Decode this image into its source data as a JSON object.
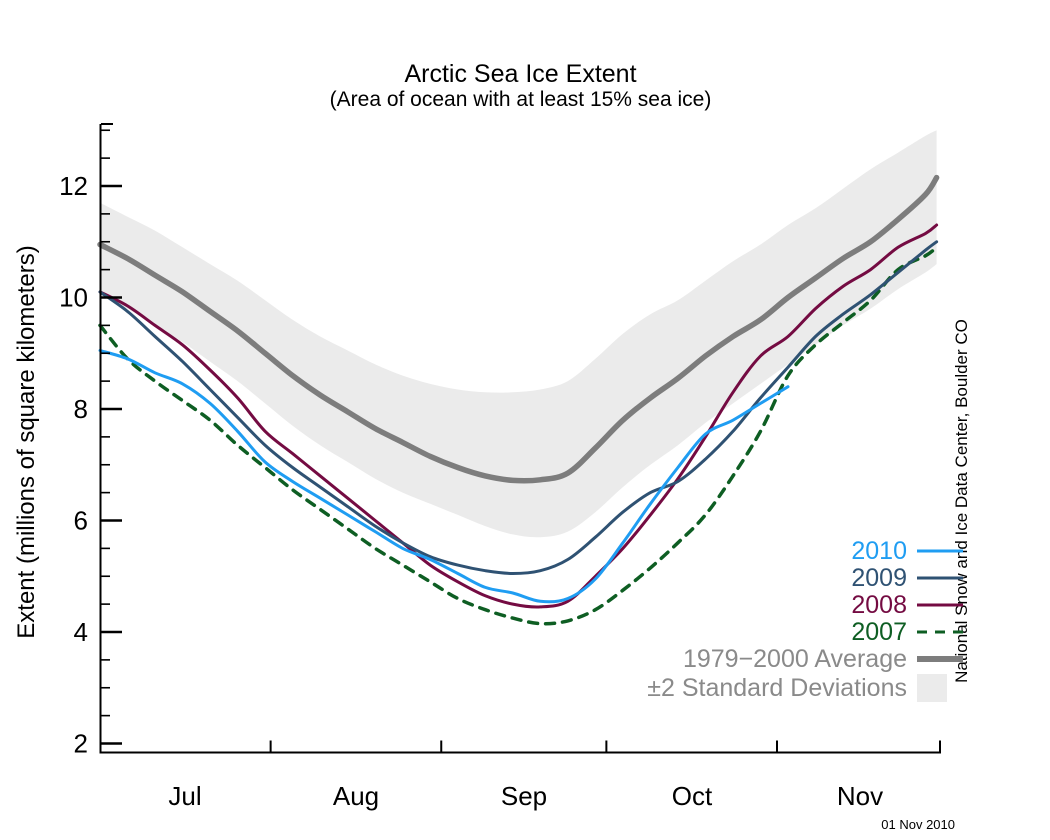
{
  "title": "Arctic Sea Ice Extent",
  "subtitle": "(Area of ocean with at least 15% sea ice)",
  "y_axis": {
    "label": "Extent (millions of square kilometers)",
    "major_ticks": [
      2,
      4,
      6,
      8,
      10,
      12
    ],
    "minor_tick_step": 0.5,
    "range": [
      1.85,
      13.1
    ]
  },
  "x_axis": {
    "month_labels": [
      "Jul",
      "Aug",
      "Sep",
      "Oct",
      "Nov"
    ],
    "range": [
      "Jul 1",
      "Dec 1"
    ],
    "month_start_ticks_day_offsets": [
      31,
      62,
      92,
      123
    ]
  },
  "watermark": "National Snow and Ice Data Center, Boulder CO",
  "date_stamp": "01 Nov 2010",
  "legend": [
    {
      "id": "2010",
      "label": "2010",
      "color": "#1f9df2",
      "style": "solid"
    },
    {
      "id": "2009",
      "label": "2009",
      "color": "#2f5273",
      "style": "solid"
    },
    {
      "id": "2008",
      "label": "2008",
      "color": "#740b42",
      "style": "solid"
    },
    {
      "id": "2007",
      "label": "2007",
      "color": "#0e5e23",
      "style": "dashed"
    },
    {
      "id": "average",
      "label": "1979−2000 Average",
      "color": "#7d7d7d",
      "style": "thick",
      "text_color": "#8a8a8a"
    },
    {
      "id": "stddev",
      "label": "±2 Standard Deviations",
      "color": "#ebebeb",
      "style": "band",
      "text_color": "#8a8a8a"
    }
  ],
  "chart_data": {
    "type": "line",
    "title": "Arctic Sea Ice Extent",
    "subtitle": "(Area of ocean with at least 15% sea ice)",
    "xlabel": "",
    "ylabel": "Extent (millions of square kilometers)",
    "ylim": [
      1.85,
      13.1
    ],
    "grid": false,
    "legend_position": "lower right",
    "units": "millions of square kilometers",
    "dates": [
      "Jul 1",
      "Jul 6",
      "Jul 11",
      "Jul 16",
      "Jul 21",
      "Jul 26",
      "Jul 31",
      "Aug 5",
      "Aug 10",
      "Aug 15",
      "Aug 20",
      "Aug 25",
      "Aug 30",
      "Sep 4",
      "Sep 9",
      "Sep 14",
      "Sep 19",
      "Sep 24",
      "Sep 29",
      "Oct 4",
      "Oct 9",
      "Oct 14",
      "Oct 19",
      "Oct 24",
      "Oct 29",
      "Nov 3",
      "Nov 8",
      "Nov 13",
      "Nov 18",
      "Nov 23",
      "Nov 28",
      "Nov 30"
    ],
    "day_offsets": [
      0,
      5,
      10,
      15,
      20,
      25,
      30,
      35,
      40,
      45,
      50,
      55,
      60,
      65,
      70,
      75,
      80,
      85,
      90,
      95,
      100,
      105,
      110,
      115,
      120,
      125,
      130,
      135,
      140,
      145,
      150,
      152
    ],
    "series": [
      {
        "name": "2010",
        "color": "#1f9df2",
        "dash": null,
        "width": 3,
        "values": [
          9.05,
          8.9,
          8.65,
          8.45,
          8.1,
          7.6,
          7.05,
          6.7,
          6.4,
          6.1,
          5.8,
          5.5,
          5.3,
          5.05,
          4.8,
          4.7,
          4.55,
          4.6,
          4.95,
          5.6,
          6.3,
          6.95,
          7.55,
          7.8,
          8.1,
          8.4,
          null,
          null,
          null,
          null,
          null,
          null
        ],
        "ends": "01 Nov 2010"
      },
      {
        "name": "2009",
        "color": "#2f5273",
        "dash": null,
        "width": 3,
        "values": [
          10.1,
          9.75,
          9.3,
          8.85,
          8.35,
          7.85,
          7.35,
          6.95,
          6.6,
          6.25,
          5.9,
          5.6,
          5.35,
          5.2,
          5.1,
          5.05,
          5.1,
          5.3,
          5.7,
          6.15,
          6.5,
          6.7,
          7.1,
          7.6,
          8.2,
          8.75,
          9.3,
          9.7,
          10.05,
          10.45,
          10.85,
          11.0
        ]
      },
      {
        "name": "2008",
        "color": "#740b42",
        "dash": null,
        "width": 3,
        "values": [
          10.1,
          9.85,
          9.5,
          9.15,
          8.7,
          8.2,
          7.6,
          7.2,
          6.8,
          6.4,
          6.0,
          5.6,
          5.2,
          4.9,
          4.65,
          4.5,
          4.45,
          4.55,
          5.0,
          5.5,
          6.1,
          6.75,
          7.5,
          8.3,
          8.95,
          9.3,
          9.8,
          10.2,
          10.5,
          10.9,
          11.15,
          11.3
        ]
      },
      {
        "name": "2007",
        "color": "#0e5e23",
        "dash": "9 8",
        "width": 3.5,
        "values": [
          9.5,
          8.9,
          8.5,
          8.15,
          7.8,
          7.35,
          6.95,
          6.55,
          6.2,
          5.85,
          5.5,
          5.2,
          4.9,
          4.6,
          4.4,
          4.25,
          4.15,
          4.2,
          4.4,
          4.75,
          5.15,
          5.6,
          6.1,
          6.8,
          7.6,
          8.6,
          9.15,
          9.55,
          9.95,
          10.5,
          10.75,
          10.9
        ]
      },
      {
        "name": "1979-2000 Average",
        "color": "#7d7d7d",
        "dash": null,
        "width": 5.5,
        "values": [
          10.95,
          10.7,
          10.4,
          10.1,
          9.75,
          9.4,
          9.0,
          8.6,
          8.25,
          7.95,
          7.65,
          7.4,
          7.15,
          6.95,
          6.8,
          6.72,
          6.73,
          6.85,
          7.3,
          7.8,
          8.2,
          8.55,
          8.95,
          9.3,
          9.6,
          10.0,
          10.35,
          10.7,
          11.0,
          11.4,
          11.85,
          12.15
        ]
      }
    ],
    "band": {
      "name": "±2 Standard Deviations",
      "color": "#ebebeb",
      "upper": [
        11.7,
        11.45,
        11.2,
        10.9,
        10.6,
        10.3,
        9.95,
        9.6,
        9.3,
        9.05,
        8.8,
        8.6,
        8.45,
        8.35,
        8.3,
        8.3,
        8.35,
        8.5,
        8.9,
        9.35,
        9.7,
        9.95,
        10.3,
        10.65,
        10.95,
        11.3,
        11.6,
        11.95,
        12.3,
        12.6,
        12.9,
        13.0
      ],
      "lower": [
        10.05,
        9.8,
        9.5,
        9.2,
        8.85,
        8.5,
        8.1,
        7.7,
        7.35,
        7.05,
        6.75,
        6.5,
        6.3,
        6.1,
        5.9,
        5.75,
        5.7,
        5.8,
        6.15,
        6.6,
        7.0,
        7.35,
        7.75,
        8.1,
        8.45,
        8.8,
        9.15,
        9.5,
        9.8,
        10.15,
        10.45,
        10.6
      ]
    }
  }
}
